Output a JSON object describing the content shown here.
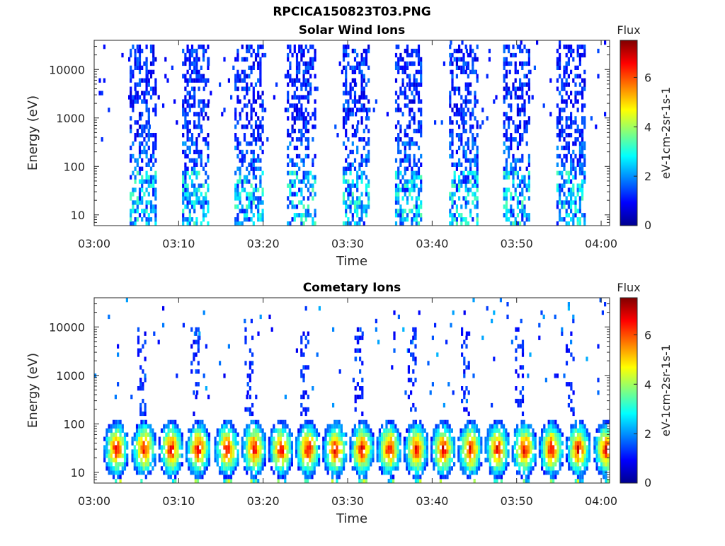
{
  "figure_title": "RPCICA150823T03.PNG",
  "colors": {
    "colormap": [
      "#00008f",
      "#0000ff",
      "#0080ff",
      "#00ffff",
      "#80ff80",
      "#ffff00",
      "#ff8000",
      "#ff0000",
      "#800000"
    ],
    "axis": "#262626",
    "background": "#ffffff"
  },
  "chart_data": [
    {
      "type": "heatmap",
      "title": "Solar Wind Ions",
      "xlabel": "Time",
      "ylabel": "Energy (eV)",
      "x_ticks": [
        "03:00",
        "03:10",
        "03:20",
        "03:30",
        "03:40",
        "03:50",
        "04:00"
      ],
      "xlim": [
        "03:00",
        "04:01"
      ],
      "y_ticks": [
        10,
        100,
        1000,
        10000
      ],
      "y_tick_labels": [
        "10",
        "100",
        "1000",
        "10000"
      ],
      "ylim": [
        6,
        40000
      ],
      "y_scale": "log",
      "colorbar": {
        "title": "Flux",
        "label": "eV-1cm-2sr-1s-1",
        "range": [
          0,
          7.5
        ],
        "ticks": [
          0,
          2,
          4,
          6
        ]
      },
      "bursts": [
        {
          "start": "03:04.2",
          "end": "03:07.3",
          "emin": 6,
          "emax": 30000,
          "flux_peak": 3.0
        },
        {
          "start": "03:10.4",
          "end": "03:13.5",
          "emin": 6,
          "emax": 30000,
          "flux_peak": 3.0
        },
        {
          "start": "03:16.6",
          "end": "03:20.0",
          "emin": 6,
          "emax": 30000,
          "flux_peak": 3.0
        },
        {
          "start": "03:22.8",
          "end": "03:26.2",
          "emin": 6,
          "emax": 30000,
          "flux_peak": 3.0
        },
        {
          "start": "03:29.4",
          "end": "03:32.6",
          "emin": 6,
          "emax": 30000,
          "flux_peak": 3.0
        },
        {
          "start": "03:35.6",
          "end": "03:38.8",
          "emin": 6,
          "emax": 30000,
          "flux_peak": 3.0
        },
        {
          "start": "03:42.0",
          "end": "03:45.3",
          "emin": 6,
          "emax": 30000,
          "flux_peak": 3.0
        },
        {
          "start": "03:48.4",
          "end": "03:51.6",
          "emin": 6,
          "emax": 30000,
          "flux_peak": 3.0
        },
        {
          "start": "03:54.7",
          "end": "03:58.0",
          "emin": 6,
          "emax": 30000,
          "flux_peak": 3.0
        }
      ]
    },
    {
      "type": "heatmap",
      "title": "Cometary Ions",
      "xlabel": "Time",
      "ylabel": "Energy (eV)",
      "x_ticks": [
        "03:00",
        "03:10",
        "03:20",
        "03:30",
        "03:40",
        "03:50",
        "04:00"
      ],
      "xlim": [
        "03:00",
        "04:01"
      ],
      "y_ticks": [
        10,
        100,
        1000,
        10000
      ],
      "y_tick_labels": [
        "10",
        "100",
        "1000",
        "10000"
      ],
      "ylim": [
        6,
        40000
      ],
      "y_scale": "log",
      "colorbar": {
        "title": "Flux",
        "label": "eV-1cm-2sr-1s-1",
        "range": [
          0,
          7.5
        ],
        "ticks": [
          0,
          2,
          4,
          6
        ]
      },
      "blob_centers": [
        "03:02.5",
        "03:05.8",
        "03:09.0",
        "03:12.2",
        "03:15.6",
        "03:18.8",
        "03:22.0",
        "03:25.2",
        "03:28.4",
        "03:31.6",
        "03:34.8",
        "03:38.0",
        "03:41.2",
        "03:44.4",
        "03:47.6",
        "03:50.8",
        "03:54.0",
        "03:57.2",
        "04:00.5"
      ],
      "blob_energy_range": [
        8,
        110
      ],
      "blob_peak_energy": 30,
      "blob_flux_peak": 7.0,
      "sparse_spikes": [
        "03:05.5",
        "03:11.8",
        "03:18.2",
        "03:24.8",
        "03:31.2",
        "03:37.5",
        "03:43.8",
        "03:50.2",
        "03:56.2"
      ],
      "spike_energy_max": 10000
    }
  ]
}
